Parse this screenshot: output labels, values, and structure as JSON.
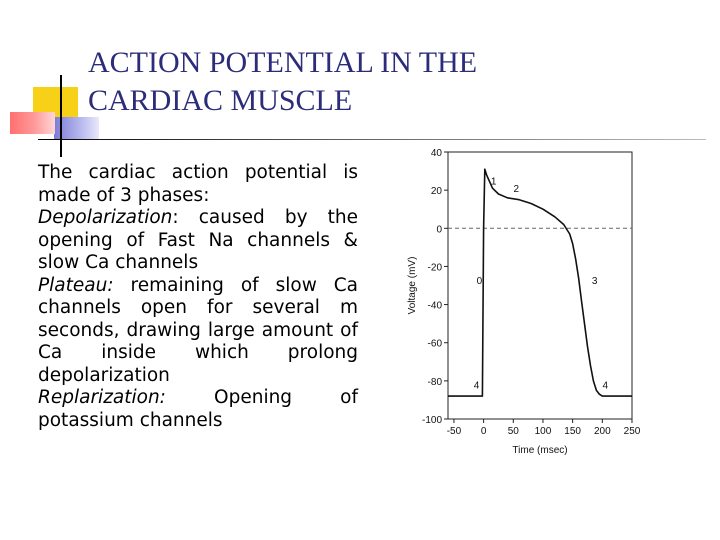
{
  "slide": {
    "title_line1": "ACTION POTENTIAL IN THE",
    "title_line2": "CARDIAC MUSCLE"
  },
  "body": {
    "intro": "The cardiac action potential is made of 3 phases:",
    "phases": [
      {
        "term": "Depolarization",
        "suffix": ":",
        "text": " caused by the opening of Fast Na channels & slow Ca channels"
      },
      {
        "term": "Plateau:",
        "suffix": "",
        "text": " remaining of slow Ca channels open for several m seconds, drawing large amount of Ca inside which prolong depolarization"
      },
      {
        "term": "Replarization:",
        "suffix": "",
        "text": " Opening of potassium channels"
      }
    ]
  },
  "chart_data": {
    "type": "line",
    "xlabel": "Time (msec)",
    "ylabel": "Voltage (mV)",
    "xlim": [
      -60,
      250
    ],
    "ylim": [
      -100,
      40
    ],
    "x_ticks": [
      -50,
      0,
      50,
      100,
      150,
      200,
      250
    ],
    "y_ticks": [
      40,
      20,
      0,
      -20,
      -40,
      -60,
      -80,
      -100
    ],
    "reference_line_y": 0,
    "series": [
      {
        "x": [
          -60,
          -2,
          0,
          2,
          5,
          15,
          25,
          40,
          60,
          80,
          100,
          120,
          135,
          145,
          150,
          155,
          160,
          165,
          170,
          175,
          180,
          185,
          190,
          195,
          200,
          210,
          230,
          250
        ],
        "y": [
          -88,
          -88,
          0,
          31,
          28,
          21,
          18,
          16,
          15,
          13,
          10,
          6,
          2,
          -3,
          -8,
          -16,
          -26,
          -38,
          -50,
          -62,
          -72,
          -80,
          -85,
          -87,
          -88,
          -88,
          -88,
          -88
        ]
      }
    ],
    "phase_labels": [
      {
        "label": "0",
        "x": -7,
        "y": -27
      },
      {
        "label": "1",
        "x": 17,
        "y": 25
      },
      {
        "label": "2",
        "x": 55,
        "y": 21
      },
      {
        "label": "3",
        "x": 187,
        "y": -27
      },
      {
        "label": "4",
        "x": -12,
        "y": -82
      },
      {
        "label": "4",
        "x": 205,
        "y": -82
      }
    ]
  }
}
